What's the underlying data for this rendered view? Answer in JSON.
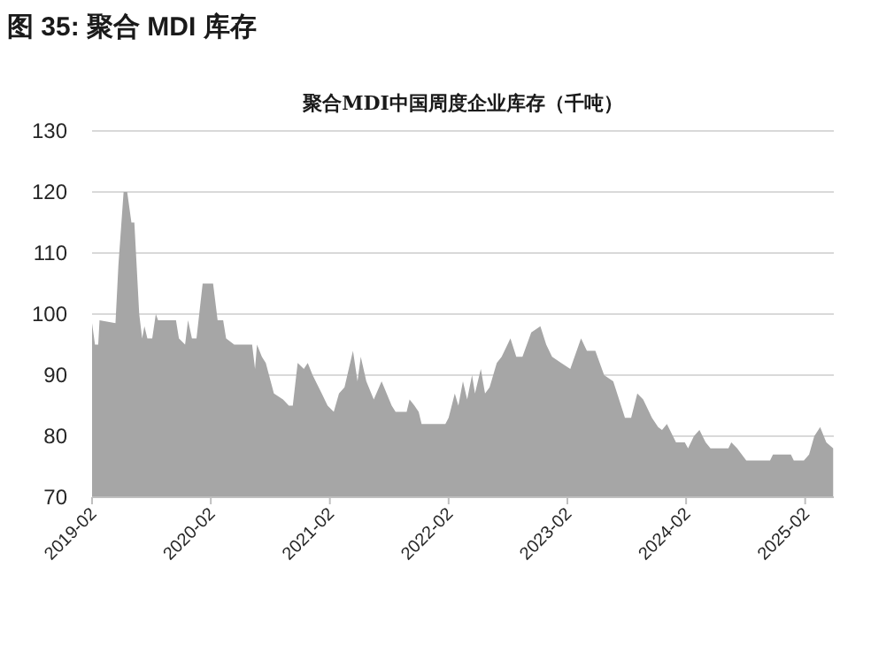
{
  "chart_data": {
    "type": "area",
    "title": "图 35:  聚合 MDI 库存",
    "subtitle": "聚合MDI中国周度企业库存（千吨）",
    "x": [
      "2019-02-01",
      "2019-02-10",
      "2019-02-20",
      "2019-02-24",
      "2019-04-14",
      "2019-04-23",
      "2019-05-09",
      "2019-05-20",
      "2019-06-02",
      "2019-06-11",
      "2019-06-26",
      "2019-07-05",
      "2019-07-12",
      "2019-07-21",
      "2019-08-05",
      "2019-08-16",
      "2019-08-23",
      "2019-10-17",
      "2019-10-26",
      "2019-11-14",
      "2019-11-23",
      "2019-12-05",
      "2019-12-19",
      "2020-01-07",
      "2020-02-08",
      "2020-02-22",
      "2020-03-10",
      "2020-03-19",
      "2020-04-13",
      "2020-06-07",
      "2020-06-16",
      "2020-06-22",
      "2020-07-07",
      "2020-07-19",
      "2020-08-13",
      "2020-09-10",
      "2020-09-28",
      "2020-10-10",
      "2020-10-25",
      "2020-11-13",
      "2020-11-25",
      "2020-12-10",
      "2021-01-07",
      "2021-01-25",
      "2021-02-13",
      "2021-03-01",
      "2021-03-18",
      "2021-04-13",
      "2021-04-27",
      "2021-05-07",
      "2021-05-24",
      "2021-06-16",
      "2021-07-10",
      "2021-08-10",
      "2021-08-22",
      "2021-09-25",
      "2021-10-04",
      "2021-10-19",
      "2021-11-01",
      "2021-11-10",
      "2022-01-22",
      "2022-02-01",
      "2022-02-20",
      "2022-03-03",
      "2022-03-17",
      "2022-03-30",
      "2022-04-14",
      "2022-04-23",
      "2022-05-11",
      "2022-05-24",
      "2022-06-07",
      "2022-06-29",
      "2022-07-14",
      "2022-08-10",
      "2022-08-28",
      "2022-09-16",
      "2022-10-13",
      "2022-11-10",
      "2022-11-28",
      "2022-12-16",
      "2023-01-13",
      "2023-02-10",
      "2023-03-15",
      "2023-04-02",
      "2023-04-28",
      "2023-05-25",
      "2023-06-22",
      "2023-07-10",
      "2023-07-28",
      "2023-08-16",
      "2023-09-04",
      "2023-09-22",
      "2023-10-19",
      "2023-11-07",
      "2023-11-19",
      "2023-12-04",
      "2024-01-01",
      "2024-01-28",
      "2024-02-07",
      "2024-02-25",
      "2024-03-13",
      "2024-04-01",
      "2024-04-16",
      "2024-06-10",
      "2024-06-19",
      "2024-07-07",
      "2024-08-04",
      "2024-10-16",
      "2024-10-25",
      "2024-12-19",
      "2024-12-28",
      "2025-01-28",
      "2025-02-13",
      "2025-03-01",
      "2025-03-19",
      "2025-04-07",
      "2025-04-28"
    ],
    "series": [
      {
        "color": "#a6a6a6",
        "values": [
          98.5,
          95,
          95,
          99,
          98.5,
          108,
          120,
          120,
          115,
          115,
          100,
          96,
          98,
          96,
          96,
          100,
          99,
          99,
          96,
          95,
          99,
          96,
          96,
          105,
          105,
          99,
          99,
          96,
          95,
          95,
          91,
          95,
          93,
          92,
          87,
          86,
          85,
          85,
          92,
          91,
          92,
          90,
          87,
          85,
          84,
          87,
          88,
          94,
          89,
          93,
          89,
          86,
          89,
          85,
          84,
          84,
          86,
          85,
          84,
          82,
          82,
          83,
          87,
          85,
          89,
          86,
          90,
          87,
          91,
          87,
          88,
          92,
          93,
          96,
          93,
          93,
          97,
          98,
          95,
          93,
          92,
          91,
          96,
          94,
          94,
          90,
          89,
          86,
          83,
          83,
          87,
          86,
          83,
          81.5,
          81,
          82,
          79,
          79,
          78,
          80,
          81,
          79,
          78,
          78,
          79,
          78,
          76,
          76,
          77,
          77,
          76,
          76,
          77,
          80,
          81.5,
          79,
          78
        ]
      }
    ],
    "xlim": [
      "2019-02-01",
      "2025-04-30"
    ],
    "xticks": [
      "2019-02",
      "2020-02",
      "2021-02",
      "2022-02",
      "2023-02",
      "2024-02",
      "2025-02"
    ],
    "ylim": [
      70,
      130
    ],
    "yticks": [
      70,
      80,
      90,
      100,
      110,
      120,
      130
    ],
    "grid": "y"
  }
}
